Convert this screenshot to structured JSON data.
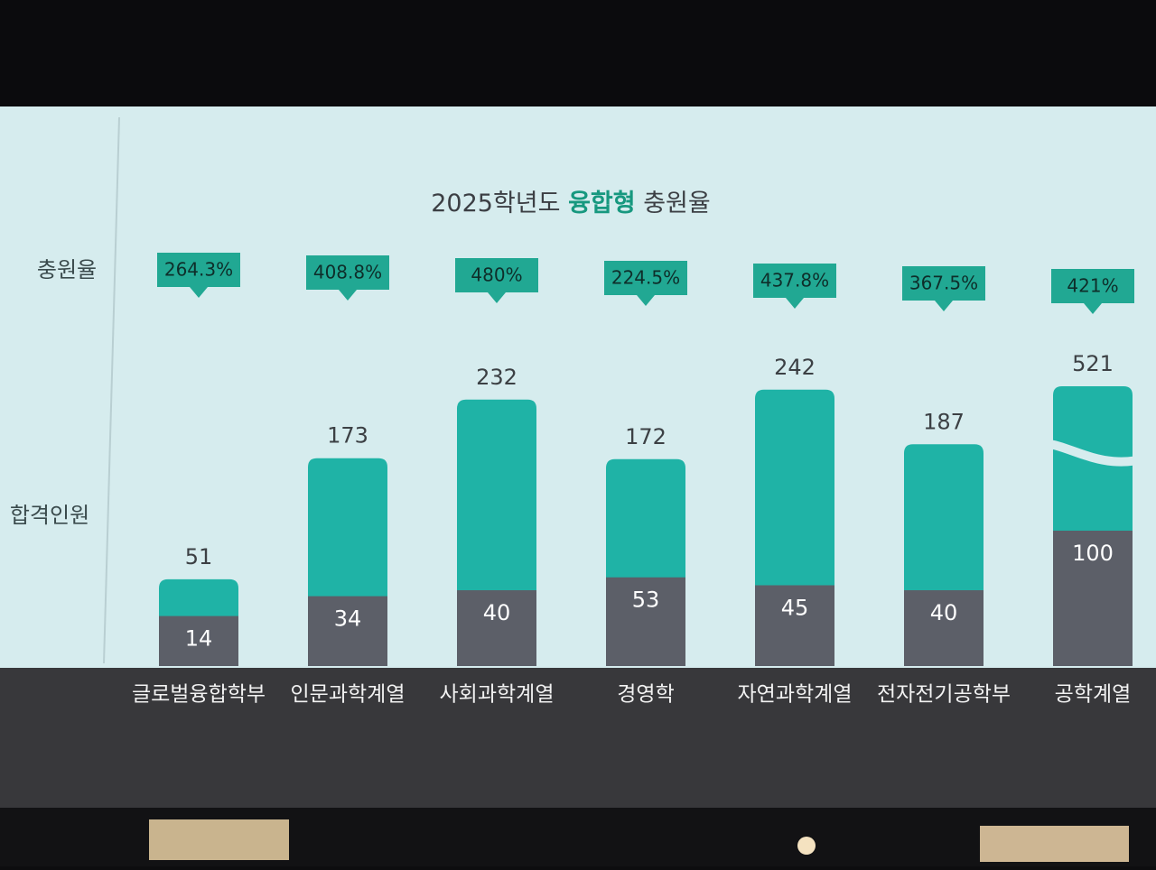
{
  "chart_data": {
    "type": "bar",
    "title_prefix": "2025학년도",
    "title_highlight": "융합형",
    "title_suffix": "충원율",
    "rate_label": "충원율",
    "count_label": "합격인원",
    "categories": [
      "글로벌융합학부",
      "인문과학계열",
      "사회과학계열",
      "경영학",
      "자연과학계열",
      "전자전기공학부",
      "공학계열"
    ],
    "series": [
      {
        "color": "#1fb3a6",
        "values": [
          51,
          173,
          232,
          172,
          242,
          187,
          521
        ]
      },
      {
        "color": "#5c5f68",
        "values": [
          14,
          34,
          40,
          53,
          45,
          40,
          100
        ]
      }
    ],
    "rates": {
      "color": "#21a893",
      "values": [
        264.3,
        408.8,
        480,
        224.5,
        437.8,
        367.5,
        421
      ],
      "value_labels": [
        "264.3%",
        "408.8%",
        "480%",
        "224.5%",
        "437.8%",
        "367.5%",
        "421%"
      ]
    }
  }
}
